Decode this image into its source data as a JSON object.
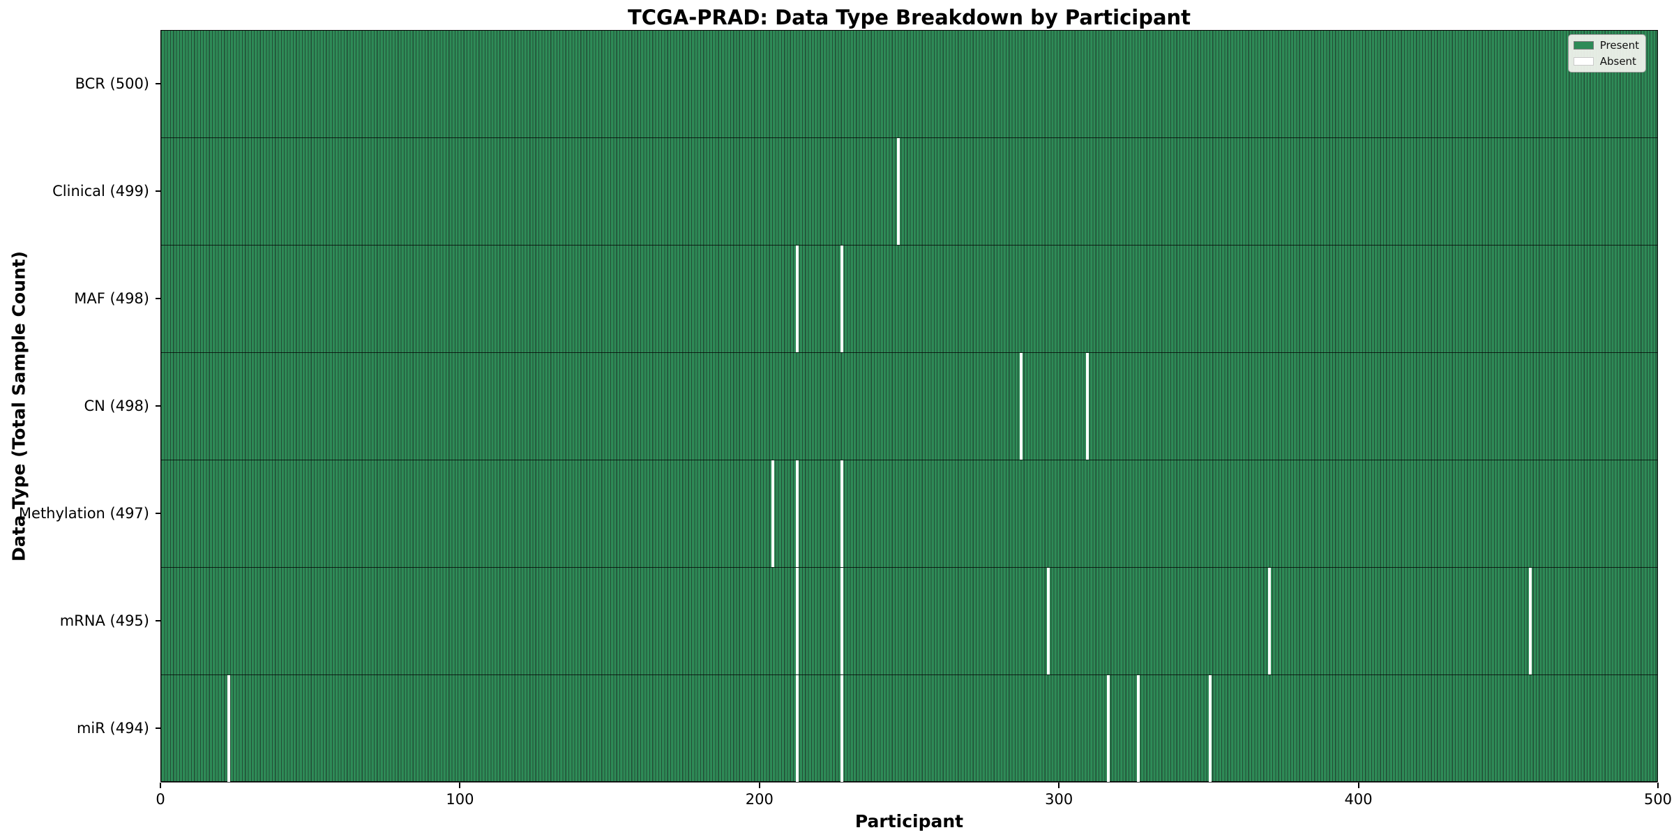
{
  "chart_data": {
    "type": "heatmap",
    "title": "TCGA-PRAD: Data Type Breakdown by Participant",
    "xlabel": "Participant",
    "ylabel": "Data Type (Total Sample Count)",
    "x_ticks": [
      0,
      100,
      200,
      300,
      400,
      500
    ],
    "xlim": [
      0,
      500
    ],
    "n_participants": 500,
    "grid": false,
    "legend_position": "upper right",
    "legend": [
      {
        "label": "Present",
        "color": "#2E8B57"
      },
      {
        "label": "Absent",
        "color": "#FFFFFF"
      }
    ],
    "colors": {
      "present_fill": "#2E8B57",
      "bar_edge": "#224d36",
      "absent_fill": "#FFFFFF",
      "row_separator": "#1a1a1a"
    },
    "rows": [
      {
        "label": "BCR (500)",
        "total": 500,
        "absent_participants": []
      },
      {
        "label": "Clinical (499)",
        "total": 499,
        "absent_participants": [
          246
        ]
      },
      {
        "label": "MAF (498)",
        "total": 498,
        "absent_participants": [
          212,
          227
        ]
      },
      {
        "label": "CN (498)",
        "total": 498,
        "absent_participants": [
          287,
          309
        ]
      },
      {
        "label": "Methylation (497)",
        "total": 497,
        "absent_participants": [
          204,
          212,
          227
        ]
      },
      {
        "label": "mRNA (495)",
        "total": 495,
        "absent_participants": [
          212,
          227,
          296,
          370,
          457
        ]
      },
      {
        "label": "miR (494)",
        "total": 494,
        "absent_participants": [
          22,
          212,
          227,
          316,
          326,
          350
        ]
      }
    ]
  }
}
